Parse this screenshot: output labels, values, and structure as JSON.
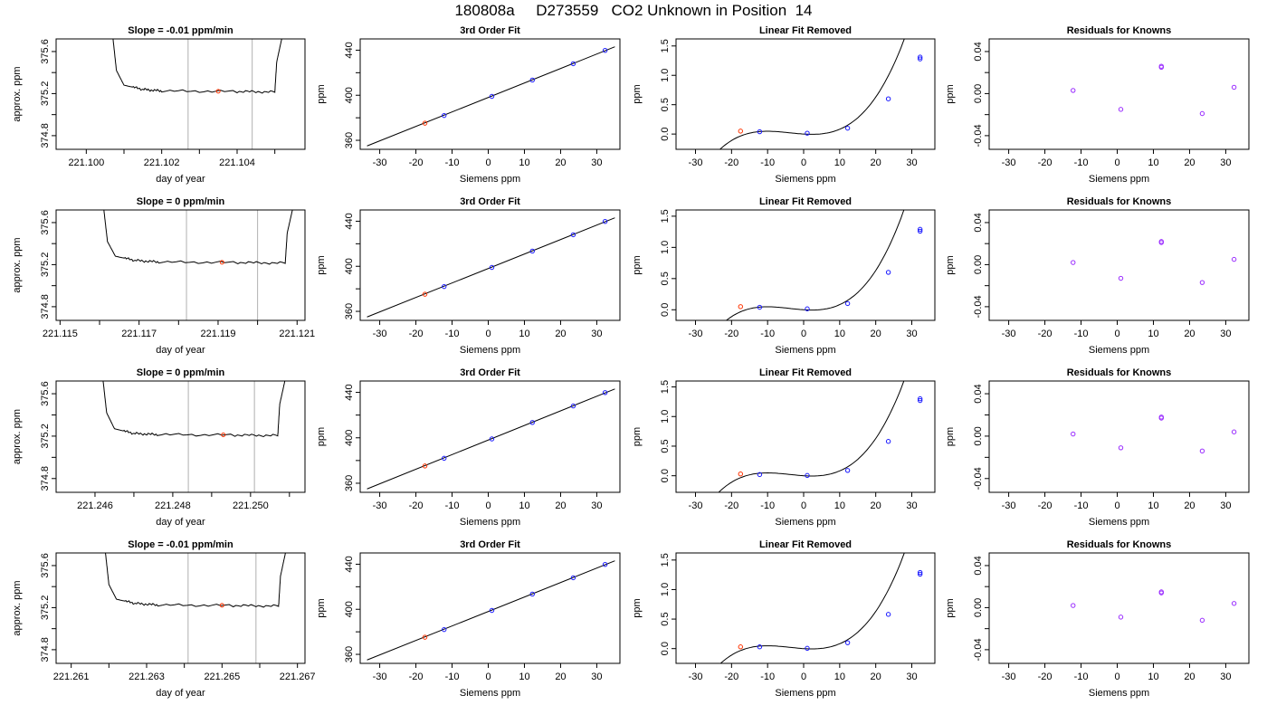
{
  "page_title": "180808a     D273559   CO2 Unknown in Position  14",
  "colors": {
    "trace": "#000000",
    "gridline": "#b0b0b0",
    "unknown_point": "#ff3300",
    "known_point": "#1a1aff",
    "residual_point": "#9a2cff"
  },
  "chart_data": [
    {
      "type": "line",
      "row": 1,
      "title": "Slope =  -0.01  ppm/min",
      "xlabel": "day of year",
      "ylabel": "approx. ppm",
      "xlim": [
        221.0992,
        221.1058
      ],
      "ylim": [
        374.67,
        375.72
      ],
      "xticks": [
        221.1,
        221.101,
        221.102,
        221.103,
        221.104,
        221.105
      ],
      "xticklabels": [
        "221.100",
        "",
        "221.102",
        "",
        "221.104",
        ""
      ],
      "yticks": [
        374.8,
        375.0,
        375.2,
        375.4,
        375.6
      ],
      "yticklabels": [
        "374.8",
        "",
        "375.2",
        "",
        "375.6"
      ],
      "vlines": [
        221.1027,
        221.1044
      ],
      "unknown_point": [
        221.1035,
        375.222
      ],
      "baseline": 375.22,
      "trace": [
        [
          221.1007,
          375.75
        ],
        [
          221.1008,
          375.42
        ],
        [
          221.101,
          375.28
        ],
        [
          221.1015,
          375.24
        ],
        [
          221.102,
          375.225
        ],
        [
          221.104,
          375.22
        ],
        [
          221.105,
          375.215
        ],
        [
          221.10505,
          375.5
        ],
        [
          221.1052,
          375.75
        ]
      ]
    },
    {
      "type": "line",
      "row": 2,
      "title": "Slope =  0  ppm/min",
      "xlabel": "day of year",
      "ylabel": "approx. ppm",
      "xlim": [
        221.1149,
        221.1212
      ],
      "ylim": [
        374.67,
        375.72
      ],
      "xticks": [
        221.115,
        221.116,
        221.117,
        221.118,
        221.119,
        221.12,
        221.121
      ],
      "xticklabels": [
        "221.115",
        "",
        "221.117",
        "",
        "221.119",
        "",
        "221.121"
      ],
      "yticks": [
        374.8,
        375.0,
        375.2,
        375.4,
        375.6
      ],
      "yticklabels": [
        "374.8",
        "",
        "375.2",
        "",
        "375.6"
      ],
      "vlines": [
        221.1182,
        221.12
      ],
      "unknown_point": [
        221.1191,
        375.222
      ],
      "baseline": 375.22,
      "trace": [
        [
          221.1161,
          375.75
        ],
        [
          221.1162,
          375.42
        ],
        [
          221.1164,
          375.28
        ],
        [
          221.1169,
          375.24
        ],
        [
          221.1175,
          375.225
        ],
        [
          221.1195,
          375.22
        ],
        [
          221.1207,
          375.215
        ],
        [
          221.12075,
          375.5
        ],
        [
          221.1209,
          375.75
        ]
      ]
    },
    {
      "type": "line",
      "row": 3,
      "title": "Slope =  0  ppm/min",
      "xlabel": "day of year",
      "ylabel": "approx. ppm",
      "xlim": [
        221.245,
        221.2514
      ],
      "ylim": [
        374.67,
        375.72
      ],
      "xticks": [
        221.246,
        221.247,
        221.248,
        221.249,
        221.25,
        221.251
      ],
      "xticklabels": [
        "221.246",
        "",
        "221.248",
        "",
        "221.250",
        ""
      ],
      "yticks": [
        374.8,
        375.0,
        375.2,
        375.4,
        375.6
      ],
      "yticklabels": [
        "374.8",
        "",
        "375.2",
        "",
        "375.6"
      ],
      "vlines": [
        221.2484,
        221.2501
      ],
      "unknown_point": [
        221.2493,
        375.212
      ],
      "baseline": 375.21,
      "trace": [
        [
          221.2462,
          375.75
        ],
        [
          221.2463,
          375.42
        ],
        [
          221.2465,
          375.27
        ],
        [
          221.247,
          375.225
        ],
        [
          221.2476,
          375.215
        ],
        [
          221.2496,
          375.21
        ],
        [
          221.2507,
          375.205
        ],
        [
          221.25075,
          375.5
        ],
        [
          221.2509,
          375.75
        ]
      ]
    },
    {
      "type": "line",
      "row": 4,
      "title": "Slope =  -0.01  ppm/min",
      "xlabel": "day of year",
      "ylabel": "approx. ppm",
      "xlim": [
        221.2606,
        221.2672
      ],
      "ylim": [
        374.67,
        375.72
      ],
      "xticks": [
        221.261,
        221.262,
        221.263,
        221.264,
        221.265,
        221.266,
        221.267
      ],
      "xticklabels": [
        "221.261",
        "",
        "221.263",
        "",
        "221.265",
        "",
        "221.267"
      ],
      "yticks": [
        374.8,
        375.0,
        375.2,
        375.4,
        375.6
      ],
      "yticklabels": [
        "374.8",
        "",
        "375.2",
        "",
        "375.6"
      ],
      "vlines": [
        221.2641,
        221.2659
      ],
      "unknown_point": [
        221.265,
        375.222
      ],
      "baseline": 375.22,
      "trace": [
        [
          221.2619,
          375.75
        ],
        [
          221.262,
          375.42
        ],
        [
          221.2622,
          375.28
        ],
        [
          221.2627,
          375.24
        ],
        [
          221.2633,
          375.225
        ],
        [
          221.2653,
          375.22
        ],
        [
          221.2665,
          375.215
        ],
        [
          221.26655,
          375.5
        ],
        [
          221.2667,
          375.75
        ]
      ]
    },
    {
      "type": "scatter",
      "row": 1,
      "title": "3rd Order Fit",
      "xlabel": "Siemens ppm",
      "ylabel": "ppm",
      "xlim": [
        -35.4,
        36.4
      ],
      "ylim": [
        352,
        450
      ],
      "xticks": [
        -30,
        -20,
        -10,
        0,
        10,
        20,
        30
      ],
      "xticklabels": [
        "-30",
        "-20",
        "-10",
        "0",
        "10",
        "20",
        "30"
      ],
      "yticks": [
        360,
        380,
        400,
        420,
        440
      ],
      "yticklabels": [
        "360",
        "",
        "400",
        "",
        "440"
      ],
      "fit_line": [
        [
          -33.5,
          355.0
        ],
        [
          35.0,
          443.0
        ]
      ],
      "knowns": [
        [
          -12.2,
          382.0
        ],
        [
          1.0,
          399.0
        ],
        [
          12.2,
          413.5
        ],
        [
          23.5,
          428.0
        ],
        [
          32.3,
          439.8
        ]
      ],
      "unknown": [
        -17.5,
        375.2
      ]
    },
    {
      "type": "scatter",
      "row": 2,
      "title": "3rd Order Fit",
      "xlabel": "Siemens ppm",
      "ylabel": "ppm",
      "xlim": [
        -35.4,
        36.4
      ],
      "ylim": [
        352,
        450
      ],
      "xticks": [
        -30,
        -20,
        -10,
        0,
        10,
        20,
        30
      ],
      "xticklabels": [
        "-30",
        "-20",
        "-10",
        "0",
        "10",
        "20",
        "30"
      ],
      "yticks": [
        360,
        380,
        400,
        420,
        440
      ],
      "yticklabels": [
        "360",
        "",
        "400",
        "",
        "440"
      ],
      "fit_line": [
        [
          -33.5,
          355.0
        ],
        [
          35.0,
          443.0
        ]
      ],
      "knowns": [
        [
          -12.2,
          382.0
        ],
        [
          1.0,
          399.0
        ],
        [
          12.2,
          413.5
        ],
        [
          23.5,
          428.0
        ],
        [
          32.3,
          439.8
        ]
      ],
      "unknown": [
        -17.5,
        375.2
      ]
    },
    {
      "type": "scatter",
      "row": 3,
      "title": "3rd Order Fit",
      "xlabel": "Siemens ppm",
      "ylabel": "ppm",
      "xlim": [
        -35.4,
        36.4
      ],
      "ylim": [
        352,
        450
      ],
      "xticks": [
        -30,
        -20,
        -10,
        0,
        10,
        20,
        30
      ],
      "xticklabels": [
        "-30",
        "-20",
        "-10",
        "0",
        "10",
        "20",
        "30"
      ],
      "yticks": [
        360,
        380,
        400,
        420,
        440
      ],
      "yticklabels": [
        "360",
        "",
        "400",
        "",
        "440"
      ],
      "fit_line": [
        [
          -33.5,
          355.0
        ],
        [
          35.0,
          443.0
        ]
      ],
      "knowns": [
        [
          -12.2,
          382.0
        ],
        [
          1.0,
          399.0
        ],
        [
          12.2,
          413.5
        ],
        [
          23.5,
          428.0
        ],
        [
          32.3,
          439.8
        ]
      ],
      "unknown": [
        -17.5,
        375.2
      ]
    },
    {
      "type": "scatter",
      "row": 4,
      "title": "3rd Order Fit",
      "xlabel": "Siemens ppm",
      "ylabel": "ppm",
      "xlim": [
        -35.4,
        36.4
      ],
      "ylim": [
        352,
        450
      ],
      "xticks": [
        -30,
        -20,
        -10,
        0,
        10,
        20,
        30
      ],
      "xticklabels": [
        "-30",
        "-20",
        "-10",
        "0",
        "10",
        "20",
        "30"
      ],
      "yticks": [
        360,
        380,
        400,
        420,
        440
      ],
      "yticklabels": [
        "360",
        "",
        "400",
        "",
        "440"
      ],
      "fit_line": [
        [
          -33.5,
          355.0
        ],
        [
          35.0,
          443.0
        ]
      ],
      "knowns": [
        [
          -12.2,
          382.0
        ],
        [
          1.0,
          399.0
        ],
        [
          12.2,
          413.5
        ],
        [
          23.5,
          428.0
        ],
        [
          32.3,
          439.8
        ]
      ],
      "unknown": [
        -17.5,
        375.2
      ]
    },
    {
      "type": "scatter",
      "row": 1,
      "title": "Linear Fit Removed",
      "xlabel": "Siemens ppm",
      "ylabel": "ppm",
      "xlim": [
        -35.4,
        36.4
      ],
      "ylim": [
        -0.26,
        1.62
      ],
      "xticks": [
        -30,
        -20,
        -10,
        0,
        10,
        20,
        30
      ],
      "xticklabels": [
        "-30",
        "-20",
        "-10",
        "0",
        "10",
        "20",
        "30"
      ],
      "yticks": [
        0.0,
        0.5,
        1.0,
        1.5
      ],
      "yticklabels": [
        "0.0",
        "0.5",
        "1.0",
        "1.5"
      ],
      "curve": {
        "x_range": [
          -33.0,
          35.0
        ],
        "coeffs": [
          5.6e-05,
          0.00065,
          -0.0039,
          0.0
        ]
      },
      "knowns": [
        [
          -12.2,
          0.04
        ],
        [
          1.0,
          0.015
        ],
        [
          12.2,
          0.1
        ],
        [
          23.5,
          0.6
        ],
        [
          32.3,
          1.28
        ],
        [
          32.3,
          1.31
        ]
      ],
      "unknown": [
        -17.5,
        0.05
      ]
    },
    {
      "type": "scatter",
      "row": 2,
      "title": "Linear Fit Removed",
      "xlabel": "Siemens ppm",
      "ylabel": "ppm",
      "xlim": [
        -35.4,
        36.4
      ],
      "ylim": [
        -0.17,
        1.6
      ],
      "xticks": [
        -30,
        -20,
        -10,
        0,
        10,
        20,
        30
      ],
      "xticklabels": [
        "-30",
        "-20",
        "-10",
        "0",
        "10",
        "20",
        "30"
      ],
      "yticks": [
        0.0,
        0.5,
        1.0,
        1.5
      ],
      "yticklabels": [
        "0.0",
        "0.5",
        "1.0",
        "1.5"
      ],
      "curve": {
        "x_range": [
          -33.0,
          35.0
        ],
        "coeffs": [
          5.6e-05,
          0.00065,
          -0.0039,
          0.0
        ]
      },
      "knowns": [
        [
          -12.2,
          0.04
        ],
        [
          1.0,
          0.015
        ],
        [
          12.2,
          0.1
        ],
        [
          23.5,
          0.6
        ],
        [
          32.3,
          1.26
        ],
        [
          32.3,
          1.29
        ]
      ],
      "unknown": [
        -17.5,
        0.05
      ]
    },
    {
      "type": "scatter",
      "row": 3,
      "title": "Linear Fit Removed",
      "xlabel": "Siemens ppm",
      "ylabel": "ppm",
      "xlim": [
        -35.4,
        36.4
      ],
      "ylim": [
        -0.28,
        1.6
      ],
      "xticks": [
        -30,
        -20,
        -10,
        0,
        10,
        20,
        30
      ],
      "xticklabels": [
        "-30",
        "-20",
        "-10",
        "0",
        "10",
        "20",
        "30"
      ],
      "yticks": [
        0.0,
        0.5,
        1.0,
        1.5
      ],
      "yticklabels": [
        "0.0",
        "0.5",
        "1.0",
        "1.5"
      ],
      "curve": {
        "x_range": [
          -33.0,
          35.0
        ],
        "coeffs": [
          5.6e-05,
          0.00065,
          -0.0039,
          0.0
        ]
      },
      "knowns": [
        [
          -12.2,
          0.02
        ],
        [
          1.0,
          0.005
        ],
        [
          12.2,
          0.09
        ],
        [
          23.5,
          0.58
        ],
        [
          32.3,
          1.27
        ],
        [
          32.3,
          1.3
        ]
      ],
      "unknown": [
        -17.5,
        0.03
      ]
    },
    {
      "type": "scatter",
      "row": 4,
      "title": "Linear Fit Removed",
      "xlabel": "Siemens ppm",
      "ylabel": "ppm",
      "xlim": [
        -35.4,
        36.4
      ],
      "ylim": [
        -0.25,
        1.62
      ],
      "xticks": [
        -30,
        -20,
        -10,
        0,
        10,
        20,
        30
      ],
      "xticklabels": [
        "-30",
        "-20",
        "-10",
        "0",
        "10",
        "20",
        "30"
      ],
      "yticks": [
        0.0,
        0.5,
        1.0,
        1.5
      ],
      "yticklabels": [
        "0.0",
        "0.5",
        "1.0",
        "1.5"
      ],
      "curve": {
        "x_range": [
          -33.0,
          35.0
        ],
        "coeffs": [
          5.6e-05,
          0.00065,
          -0.0039,
          0.0
        ]
      },
      "knowns": [
        [
          -12.2,
          0.03
        ],
        [
          1.0,
          0.005
        ],
        [
          12.2,
          0.1
        ],
        [
          23.5,
          0.58
        ],
        [
          32.3,
          1.26
        ],
        [
          32.3,
          1.29
        ]
      ],
      "unknown": [
        -17.5,
        0.03
      ]
    },
    {
      "type": "scatter",
      "row": 1,
      "title": "Residuals for Knowns",
      "xlabel": "Siemens ppm",
      "ylabel": "ppm",
      "xlim": [
        -35.4,
        36.4
      ],
      "ylim": [
        -0.053,
        0.052
      ],
      "xticks": [
        -30,
        -20,
        -10,
        0,
        10,
        20,
        30
      ],
      "xticklabels": [
        "-30",
        "-20",
        "-10",
        "0",
        "10",
        "20",
        "30"
      ],
      "yticks": [
        -0.04,
        -0.02,
        0.0,
        0.02,
        0.04
      ],
      "yticklabels": [
        "-0.04",
        "",
        "0.00",
        "",
        "0.04"
      ],
      "points": [
        [
          -12.2,
          0.003
        ],
        [
          1.0,
          -0.015
        ],
        [
          12.2,
          0.025
        ],
        [
          12.2,
          0.026
        ],
        [
          23.5,
          -0.019
        ],
        [
          32.3,
          0.006
        ]
      ]
    },
    {
      "type": "scatter",
      "row": 2,
      "title": "Residuals for Knowns",
      "xlabel": "Siemens ppm",
      "ylabel": "ppm",
      "xlim": [
        -35.4,
        36.4
      ],
      "ylim": [
        -0.053,
        0.052
      ],
      "xticks": [
        -30,
        -20,
        -10,
        0,
        10,
        20,
        30
      ],
      "xticklabels": [
        "-30",
        "-20",
        "-10",
        "0",
        "10",
        "20",
        "30"
      ],
      "yticks": [
        -0.04,
        -0.02,
        0.0,
        0.02,
        0.04
      ],
      "yticklabels": [
        "-0.04",
        "",
        "0.00",
        "",
        "0.04"
      ],
      "points": [
        [
          -12.2,
          0.002
        ],
        [
          1.0,
          -0.013
        ],
        [
          12.2,
          0.021
        ],
        [
          12.2,
          0.022
        ],
        [
          23.5,
          -0.017
        ],
        [
          32.3,
          0.005
        ]
      ]
    },
    {
      "type": "scatter",
      "row": 3,
      "title": "Residuals for Knowns",
      "xlabel": "Siemens ppm",
      "ylabel": "ppm",
      "xlim": [
        -35.4,
        36.4
      ],
      "ylim": [
        -0.053,
        0.052
      ],
      "xticks": [
        -30,
        -20,
        -10,
        0,
        10,
        20,
        30
      ],
      "xticklabels": [
        "-30",
        "-20",
        "-10",
        "0",
        "10",
        "20",
        "30"
      ],
      "yticks": [
        -0.04,
        -0.02,
        0.0,
        0.02,
        0.04
      ],
      "yticklabels": [
        "-0.04",
        "",
        "0.00",
        "",
        "0.04"
      ],
      "points": [
        [
          -12.2,
          0.002
        ],
        [
          1.0,
          -0.011
        ],
        [
          12.2,
          0.017
        ],
        [
          12.2,
          0.018
        ],
        [
          23.5,
          -0.014
        ],
        [
          32.3,
          0.004
        ]
      ]
    },
    {
      "type": "scatter",
      "row": 4,
      "title": "Residuals for Knowns",
      "xlabel": "Siemens ppm",
      "ylabel": "ppm",
      "xlim": [
        -35.4,
        36.4
      ],
      "ylim": [
        -0.053,
        0.052
      ],
      "xticks": [
        -30,
        -20,
        -10,
        0,
        10,
        20,
        30
      ],
      "xticklabels": [
        "-30",
        "-20",
        "-10",
        "0",
        "10",
        "20",
        "30"
      ],
      "yticks": [
        -0.04,
        -0.02,
        0.0,
        0.02,
        0.04
      ],
      "yticklabels": [
        "-0.04",
        "",
        "0.00",
        "",
        "0.04"
      ],
      "points": [
        [
          -12.2,
          0.002
        ],
        [
          1.0,
          -0.009
        ],
        [
          12.2,
          0.014
        ],
        [
          12.2,
          0.015
        ],
        [
          23.5,
          -0.012
        ],
        [
          32.3,
          0.004
        ]
      ]
    }
  ]
}
